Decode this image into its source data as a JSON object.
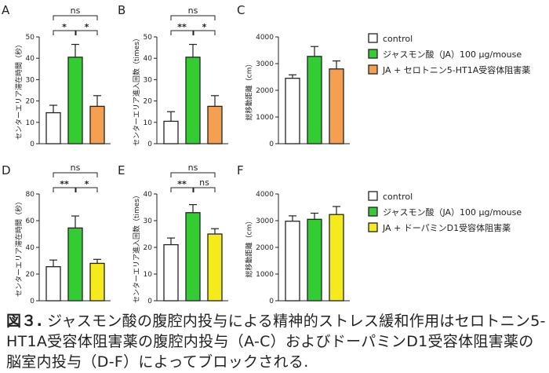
{
  "colors": {
    "control": "#ffffff",
    "ja": "#33cc33",
    "serotonin_blocker": "#f5a050",
    "dopamine_blocker": "#f4ea1c",
    "stroke": "#222222"
  },
  "legends": [
    {
      "items": [
        {
          "label": "control",
          "color_key": "control"
        },
        {
          "label": "ジャスモン酸（JA）100 µg/mouse",
          "color_key": "ja"
        },
        {
          "label": "JA + セロトニン5-HT1A受容体阻害薬",
          "color_key": "serotonin_blocker"
        }
      ]
    },
    {
      "items": [
        {
          "label": "control",
          "color_key": "control"
        },
        {
          "label": "ジャスモン酸（JA）100 µg/mouse",
          "color_key": "ja"
        },
        {
          "label": "JA + ドーパミンD1受容体阻害薬",
          "color_key": "dopamine_blocker"
        }
      ]
    }
  ],
  "caption": {
    "label": "図３.",
    "text": "ジャスモン酸の腹腔内投与による精神的ストレス緩和作用はセロトニン5-HT1A受容体阻害薬の腹腔内投与（A-C）およびドーパミンD1受容体阻害薬の脳室内投与（D-F）によってブロックされる."
  },
  "chart_data": [
    {
      "panel": "A",
      "type": "bar",
      "ylabel": "センターエリア滞在時間（秒）",
      "yticks": [
        0,
        10,
        20,
        30,
        40,
        50
      ],
      "ylim": [
        0,
        50
      ],
      "values": [
        14.5,
        40.5,
        17.5
      ],
      "errors": [
        3.5,
        6,
        5
      ],
      "colors": [
        "control",
        "ja",
        "serotonin_blocker"
      ],
      "brackets": [
        {
          "from": 0,
          "to": 1,
          "label": "*",
          "level": 1
        },
        {
          "from": 1,
          "to": 2,
          "label": "*",
          "level": 1
        },
        {
          "from": 0,
          "to": 2,
          "label": "ns",
          "level": 2
        }
      ]
    },
    {
      "panel": "B",
      "type": "bar",
      "ylabel": "センターエリア進入回数（times）",
      "yticks": [
        0,
        10,
        20,
        30,
        40,
        50
      ],
      "ylim": [
        0,
        50
      ],
      "values": [
        10.5,
        40.5,
        17.5
      ],
      "errors": [
        4.5,
        6,
        5
      ],
      "colors": [
        "control",
        "ja",
        "serotonin_blocker"
      ],
      "brackets": [
        {
          "from": 0,
          "to": 1,
          "label": "**",
          "level": 1
        },
        {
          "from": 1,
          "to": 2,
          "label": "*",
          "level": 1
        },
        {
          "from": 0,
          "to": 2,
          "label": "ns",
          "level": 2
        }
      ]
    },
    {
      "panel": "C",
      "type": "bar",
      "ylabel": "総移動距離（cm）",
      "yticks": [
        0,
        1000,
        2000,
        3000,
        4000
      ],
      "ylim": [
        0,
        4000
      ],
      "values": [
        2450,
        3270,
        2800
      ],
      "errors": [
        130,
        370,
        300
      ],
      "colors": [
        "control",
        "ja",
        "serotonin_blocker"
      ],
      "brackets": []
    },
    {
      "panel": "D",
      "type": "bar",
      "ylabel": "センターエリア滞在時間（秒）",
      "yticks": [
        0,
        20,
        40,
        60,
        80
      ],
      "ylim": [
        0,
        80
      ],
      "values": [
        25.5,
        54.5,
        28
      ],
      "errors": [
        5,
        9,
        3
      ],
      "colors": [
        "control",
        "ja",
        "dopamine_blocker"
      ],
      "brackets": [
        {
          "from": 0,
          "to": 1,
          "label": "**",
          "level": 1
        },
        {
          "from": 1,
          "to": 2,
          "label": "*",
          "level": 1
        },
        {
          "from": 0,
          "to": 2,
          "label": "ns",
          "level": 2
        }
      ]
    },
    {
      "panel": "E",
      "type": "bar",
      "ylabel": "センターエリア進入回数（times）",
      "yticks": [
        0,
        10,
        20,
        30,
        40
      ],
      "ylim": [
        0,
        40
      ],
      "values": [
        21,
        33,
        25
      ],
      "errors": [
        2.5,
        3,
        2
      ],
      "colors": [
        "control",
        "ja",
        "dopamine_blocker"
      ],
      "brackets": [
        {
          "from": 0,
          "to": 1,
          "label": "**",
          "level": 1
        },
        {
          "from": 1,
          "to": 2,
          "label": "ns",
          "level": 1
        },
        {
          "from": 0,
          "to": 2,
          "label": "ns",
          "level": 2
        }
      ]
    },
    {
      "panel": "F",
      "type": "bar",
      "ylabel": "総移動距離（cm）",
      "yticks": [
        0,
        1000,
        2000,
        3000,
        4000
      ],
      "ylim": [
        0,
        4000
      ],
      "values": [
        2980,
        3050,
        3230
      ],
      "errors": [
        200,
        230,
        300
      ],
      "colors": [
        "control",
        "ja",
        "dopamine_blocker"
      ],
      "brackets": []
    }
  ]
}
